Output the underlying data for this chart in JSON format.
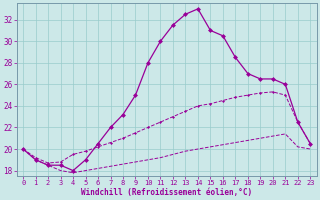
{
  "xlabel": "Windchill (Refroidissement éolien,°C)",
  "bg_color": "#cce8e8",
  "line_color": "#990099",
  "grid_color": "#99cccc",
  "xlim": [
    -0.5,
    23.5
  ],
  "ylim": [
    17.5,
    33.5
  ],
  "xticks": [
    0,
    1,
    2,
    3,
    4,
    5,
    6,
    7,
    8,
    9,
    10,
    11,
    12,
    13,
    14,
    15,
    16,
    17,
    18,
    19,
    20,
    21,
    22,
    23
  ],
  "yticks": [
    18,
    20,
    22,
    24,
    26,
    28,
    30,
    32
  ],
  "line1_x": [
    0,
    1,
    2,
    3,
    4,
    5,
    6,
    7,
    8,
    9,
    10,
    11,
    12,
    13,
    14,
    15,
    16,
    17,
    18,
    19,
    20,
    21,
    22,
    23
  ],
  "line1_y": [
    20,
    19,
    18.5,
    18,
    17.8,
    18,
    18.2,
    18.4,
    18.6,
    18.8,
    19.0,
    19.2,
    19.5,
    19.8,
    20.0,
    20.2,
    20.4,
    20.6,
    20.8,
    21.0,
    21.2,
    21.4,
    20.2,
    20.0
  ],
  "line2_x": [
    0,
    1,
    2,
    3,
    4,
    5,
    6,
    7,
    8,
    9,
    10,
    11,
    12,
    13,
    14,
    15,
    16,
    17,
    18,
    19,
    20,
    21,
    22,
    23
  ],
  "line2_y": [
    20,
    19.2,
    18.7,
    18.8,
    19.5,
    19.8,
    20.2,
    20.6,
    21.0,
    21.5,
    22.0,
    22.5,
    23.0,
    23.5,
    24.0,
    24.2,
    24.5,
    24.8,
    25.0,
    25.2,
    25.3,
    25.0,
    22.5,
    20.5
  ],
  "line3_x": [
    0,
    1,
    2,
    3,
    4,
    5,
    6,
    7,
    8,
    9,
    10,
    11,
    12,
    13,
    14,
    15,
    16,
    17,
    18,
    19,
    20,
    21,
    22,
    23
  ],
  "line3_y": [
    20,
    19,
    18.5,
    18.5,
    18,
    19,
    20.5,
    22,
    23.2,
    25,
    28,
    30,
    31.5,
    32.5,
    33,
    31,
    30.5,
    28.5,
    27,
    26.5,
    26.5,
    26,
    22.5,
    20.5
  ]
}
